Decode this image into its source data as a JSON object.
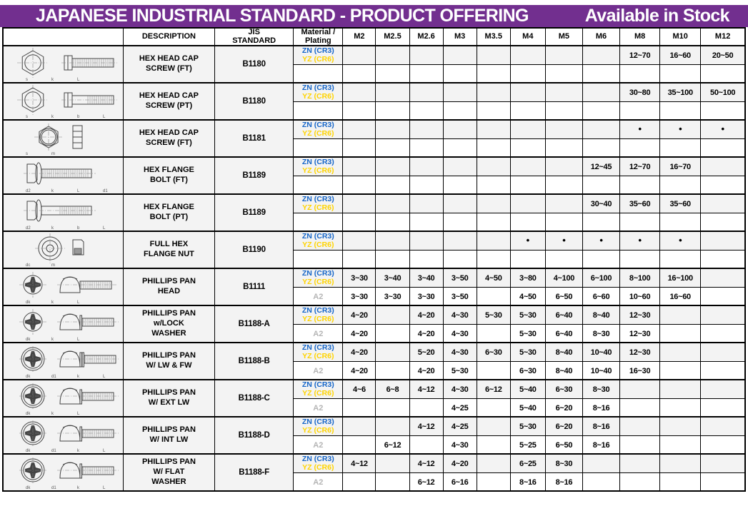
{
  "title": {
    "main": "JAPANESE INDUSTRIAL STANDARD - PRODUCT OFFERING",
    "stock": "Available in Stock"
  },
  "colors": {
    "banner": "#722f8f",
    "zn_blue": "#1565c8",
    "yz_yellow": "#ffd400",
    "a2_gray": "#b5b5b5",
    "row_stripe": "#f3f3f3"
  },
  "header": {
    "image_col": "",
    "description": "DESCRIPTION",
    "jis": "JIS\nSTANDARD",
    "material": "Material /\nPlating",
    "sizes": [
      "M2",
      "M2.5",
      "M2.6",
      "M3",
      "M3.5",
      "M4",
      "M5",
      "M6",
      "M8",
      "M10",
      "M12"
    ]
  },
  "plating_labels": {
    "zn": "ZN (CR3)",
    "yz": "YZ (CR6)",
    "a2": "A2"
  },
  "rows": [
    {
      "icon": "hex-bolt-ft-drawing",
      "dims": [
        "s",
        "k",
        "L"
      ],
      "description": "HEX HEAD CAP\nSCREW (FT)",
      "jis": "B1180",
      "zn_values": [
        "",
        "",
        "",
        "",
        "",
        "",
        "",
        "",
        "12~70",
        "16~60",
        "20~50"
      ],
      "a2_label": "",
      "a2_values": [
        "",
        "",
        "",
        "",
        "",
        "",
        "",
        "",
        "",
        "",
        ""
      ]
    },
    {
      "icon": "hex-bolt-pt-drawing",
      "dims": [
        "s",
        "k",
        "b",
        "L"
      ],
      "description": "HEX HEAD CAP\nSCREW (PT)",
      "jis": "B1180",
      "zn_values": [
        "",
        "",
        "",
        "",
        "",
        "",
        "",
        "",
        "30~80",
        "35~100",
        "50~100"
      ],
      "a2_label": "",
      "a2_values": [
        "",
        "",
        "",
        "",
        "",
        "",
        "",
        "",
        "",
        "",
        ""
      ]
    },
    {
      "icon": "hex-nut-stack-drawing",
      "dims": [
        "s",
        "m"
      ],
      "description": "HEX HEAD CAP\nSCREW (FT)",
      "jis": "B1181",
      "zn_values": [
        "",
        "",
        "",
        "",
        "",
        "",
        "",
        "",
        "•",
        "•",
        "•"
      ],
      "a2_label": "",
      "a2_values": [
        "",
        "",
        "",
        "",
        "",
        "",
        "",
        "",
        "",
        "",
        ""
      ]
    },
    {
      "icon": "flange-bolt-ft-drawing",
      "dims": [
        "d2",
        "k",
        "L",
        "d1"
      ],
      "description": "HEX FLANGE\nBOLT (FT)",
      "jis": "B1189",
      "zn_values": [
        "",
        "",
        "",
        "",
        "",
        "",
        "",
        "12~45",
        "12~70",
        "16~70",
        ""
      ],
      "a2_label": "",
      "a2_values": [
        "",
        "",
        "",
        "",
        "",
        "",
        "",
        "",
        "",
        "",
        ""
      ]
    },
    {
      "icon": "flange-bolt-pt-drawing",
      "dims": [
        "d2",
        "k",
        "b",
        "L",
        "d1"
      ],
      "description": "HEX FLANGE\nBOLT (PT)",
      "jis": "B1189",
      "zn_values": [
        "",
        "",
        "",
        "",
        "",
        "",
        "",
        "30~40",
        "35~60",
        "35~60",
        ""
      ],
      "a2_label": "",
      "a2_values": [
        "",
        "",
        "",
        "",
        "",
        "",
        "",
        "",
        "",
        "",
        ""
      ]
    },
    {
      "icon": "flange-nut-drawing",
      "dims": [
        "dc",
        "m"
      ],
      "description": "FULL HEX\nFLANGE NUT",
      "jis": "B1190",
      "zn_values": [
        "",
        "",
        "",
        "",
        "",
        "•",
        "•",
        "•",
        "•",
        "•",
        ""
      ],
      "a2_label": "",
      "a2_values": [
        "",
        "",
        "",
        "",
        "",
        "",
        "",
        "",
        "",
        "",
        ""
      ]
    },
    {
      "icon": "phillips-pan-drawing",
      "dims": [
        "dk",
        "k",
        "L"
      ],
      "description": "PHILLIPS PAN\nHEAD",
      "jis": "B1111",
      "zn_values": [
        "3~30",
        "3~40",
        "3~40",
        "3~50",
        "4~50",
        "3~80",
        "4~100",
        "6~100",
        "8~100",
        "16~100",
        ""
      ],
      "a2_label": "A2",
      "a2_values": [
        "3~30",
        "3~30",
        "3~30",
        "3~50",
        "",
        "4~50",
        "6~50",
        "6~60",
        "10~60",
        "16~60",
        ""
      ]
    },
    {
      "icon": "phillips-pan-lw-drawing",
      "dims": [
        "dk",
        "k",
        "L"
      ],
      "description": "PHILLIPS PAN\nw/LOCK\nWASHER",
      "jis": "B1188-A",
      "zn_values": [
        "4~20",
        "",
        "4~20",
        "4~30",
        "5~30",
        "5~30",
        "6~40",
        "8~40",
        "12~30",
        "",
        ""
      ],
      "a2_label": "A2",
      "a2_values": [
        "4~20",
        "",
        "4~20",
        "4~30",
        "",
        "5~30",
        "6~40",
        "8~30",
        "12~30",
        "",
        ""
      ]
    },
    {
      "icon": "phillips-pan-lwfw-drawing",
      "dims": [
        "dk",
        "d1",
        "k",
        "L"
      ],
      "description": "PHILLIPS PAN\nW/ LW & FW",
      "jis": "B1188-B",
      "zn_values": [
        "4~20",
        "",
        "5~20",
        "4~30",
        "6~30",
        "5~30",
        "8~40",
        "10~40",
        "12~30",
        "",
        ""
      ],
      "a2_label": "A2",
      "a2_values": [
        "4~20",
        "",
        "4~20",
        "5~30",
        "",
        "6~30",
        "8~40",
        "10~40",
        "16~30",
        "",
        ""
      ]
    },
    {
      "icon": "phillips-pan-extlw-drawing",
      "dims": [
        "dk",
        "k",
        "L"
      ],
      "description": "PHILLIPS PAN\nW/ EXT LW",
      "jis": "B1188-C",
      "zn_values": [
        "4~6",
        "6~8",
        "4~12",
        "4~30",
        "6~12",
        "5~40",
        "6~30",
        "8~30",
        "",
        "",
        ""
      ],
      "a2_label": "A2",
      "a2_values": [
        "",
        "",
        "",
        "4~25",
        "",
        "5~40",
        "6~20",
        "8~16",
        "",
        "",
        ""
      ]
    },
    {
      "icon": "phillips-pan-intlw-drawing",
      "dims": [
        "dk",
        "d1",
        "k",
        "L"
      ],
      "description": "PHILLIPS PAN\nW/ INT LW",
      "jis": "B1188-D",
      "zn_values": [
        "",
        "",
        "4~12",
        "4~25",
        "",
        "5~30",
        "6~20",
        "8~16",
        "",
        "",
        ""
      ],
      "a2_label": "A2",
      "a2_values": [
        "",
        "6~12",
        "",
        "4~30",
        "",
        "5~25",
        "6~50",
        "8~16",
        "",
        "",
        ""
      ]
    },
    {
      "icon": "phillips-pan-fw-drawing",
      "dims": [
        "dk",
        "d1",
        "k",
        "L"
      ],
      "description": "PHILLIPS PAN\nW/ FLAT\nWASHER",
      "jis": "B1188-F",
      "zn_values": [
        "4~12",
        "",
        "4~12",
        "4~20",
        "",
        "6~25",
        "8~30",
        "",
        "",
        "",
        ""
      ],
      "a2_label": "A2",
      "a2_values": [
        "",
        "",
        "6~12",
        "6~16",
        "",
        "8~16",
        "8~16",
        "",
        "",
        "",
        ""
      ]
    }
  ]
}
